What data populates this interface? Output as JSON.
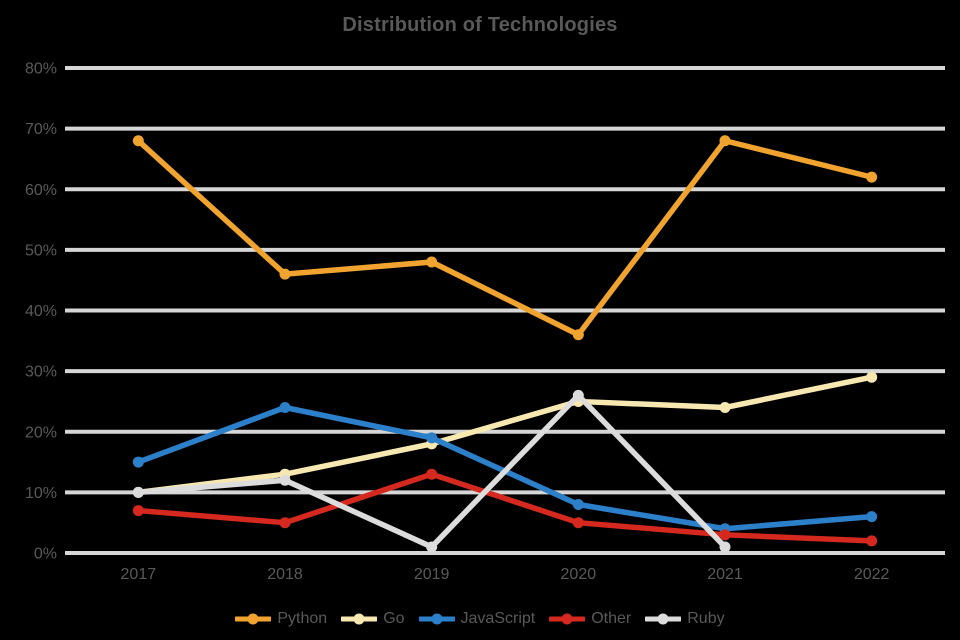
{
  "style": {
    "background": "#000000",
    "text_color": "#595959",
    "grid_color": "#D6D6D6"
  },
  "chart_data": {
    "type": "line",
    "title": "Distribution of Technologies",
    "categories": [
      "2017",
      "2018",
      "2019",
      "2020",
      "2021",
      "2022"
    ],
    "series": [
      {
        "name": "Python",
        "color": "#F0A32F",
        "values": [
          68,
          46,
          48,
          36,
          68,
          62
        ]
      },
      {
        "name": "Go",
        "color": "#F6E8B0",
        "values": [
          10,
          13,
          18,
          25,
          24,
          29
        ]
      },
      {
        "name": "JavaScript",
        "color": "#2C7FC9",
        "values": [
          15,
          24,
          19,
          8,
          4,
          6
        ]
      },
      {
        "name": "Other",
        "color": "#D5281F",
        "values": [
          7,
          5,
          13,
          5,
          3,
          2
        ]
      },
      {
        "name": "Ruby",
        "color": "#DCDCDC",
        "values": [
          10,
          12,
          1,
          26,
          1,
          null
        ]
      }
    ],
    "ylim": [
      0,
      80
    ],
    "ytick_labels": [
      "0%",
      "10%",
      "20%",
      "30%",
      "40%",
      "50%",
      "60%",
      "70%",
      "80%"
    ],
    "grid": true,
    "legend_position": "bottom",
    "marker": "circle"
  }
}
